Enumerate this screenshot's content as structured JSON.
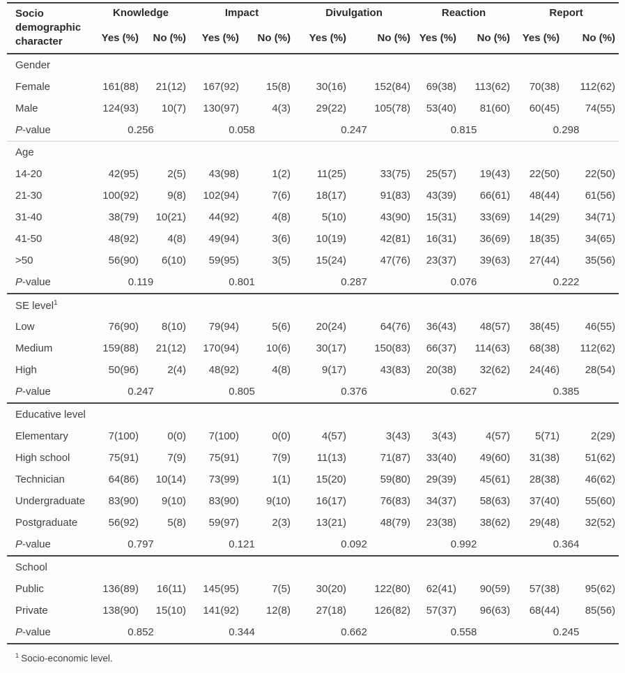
{
  "table": {
    "stub_header": "Socio demographic character",
    "groups": [
      "Knowledge",
      "Impact",
      "Divulgation",
      "Reaction",
      "Report"
    ],
    "subheaders": {
      "yes": "Yes (%)",
      "no": "No (%)"
    },
    "p_row": {
      "italic": "P",
      "rest": "-value"
    },
    "sections": [
      {
        "name": "Gender",
        "sup": "",
        "rows": [
          {
            "label": "Female",
            "values": [
              "161(88)",
              "21(12)",
              "167(92)",
              "15(8)",
              "30(16)",
              "152(84)",
              "69(38)",
              "113(62)",
              "70(38)",
              "112(62)"
            ]
          },
          {
            "label": "Male",
            "values": [
              "124(93)",
              "10(7)",
              "130(97)",
              "4(3)",
              "29(22)",
              "105(78)",
              "53(40)",
              "81(60)",
              "60(45)",
              "74(55)"
            ]
          }
        ],
        "p_values": [
          "0.256",
          "0.058",
          "0.247",
          "0.815",
          "0.298"
        ]
      },
      {
        "name": "Age",
        "sup": "",
        "rows": [
          {
            "label": "14-20",
            "values": [
              "42(95)",
              "2(5)",
              "43(98)",
              "1(2)",
              "11(25)",
              "33(75)",
              "25(57)",
              "19(43)",
              "22(50)",
              "22(50)"
            ]
          },
          {
            "label": "21-30",
            "values": [
              "100(92)",
              "9(8)",
              "102(94)",
              "7(6)",
              "18(17)",
              "91(83)",
              "43(39)",
              "66(61)",
              "48(44)",
              "61(56)"
            ]
          },
          {
            "label": "31-40",
            "values": [
              "38(79)",
              "10(21)",
              "44(92)",
              "4(8)",
              "5(10)",
              "43(90)",
              "15(31)",
              "33(69)",
              "14(29)",
              "34(71)"
            ]
          },
          {
            "label": "41-50",
            "values": [
              "48(92)",
              "4(8)",
              "49(94)",
              "3(6)",
              "10(19)",
              "42(81)",
              "16(31)",
              "36(69)",
              "18(35)",
              "34(65)"
            ]
          },
          {
            "label": ">50",
            "values": [
              "56(90)",
              "6(10)",
              "59(95)",
              "3(5)",
              "15(24)",
              "47(76)",
              "23(37)",
              "39(63)",
              "27(44)",
              "35(56)"
            ]
          }
        ],
        "p_values": [
          "0.119",
          "0.801",
          "0.287",
          "0.076",
          "0.222"
        ]
      },
      {
        "name": "SE level",
        "sup": "1",
        "rows": [
          {
            "label": "Low",
            "values": [
              "76(90)",
              "8(10)",
              "79(94)",
              "5(6)",
              "20(24)",
              "64(76)",
              "36(43)",
              "48(57)",
              "38(45)",
              "46(55)"
            ]
          },
          {
            "label": "Medium",
            "values": [
              "159(88)",
              "21(12)",
              "170(94)",
              "10(6)",
              "30(17)",
              "150(83)",
              "66(37)",
              "114(63)",
              "68(38)",
              "112(62)"
            ]
          },
          {
            "label": "High",
            "values": [
              "50(96)",
              "2(4)",
              "48(92)",
              "4(8)",
              "9(17)",
              "43(83)",
              "20(38)",
              "32(62)",
              "24(46)",
              "28(54)"
            ]
          }
        ],
        "p_values": [
          "0.247",
          "0.805",
          "0.376",
          "0.627",
          "0.385"
        ]
      },
      {
        "name": "Educative level",
        "sup": "",
        "rows": [
          {
            "label": "Elementary",
            "values": [
              "7(100)",
              "0(0)",
              "7(100)",
              "0(0)",
              "4(57)",
              "3(43)",
              "3(43)",
              "4(57)",
              "5(71)",
              "2(29)"
            ]
          },
          {
            "label": "High school",
            "values": [
              "75(91)",
              "7(9)",
              "75(91)",
              "7(9)",
              "11(13)",
              "71(87)",
              "33(40)",
              "49(60)",
              "31(38)",
              "51(62)"
            ]
          },
          {
            "label": "Technician",
            "values": [
              "64(86)",
              "10(14)",
              "73(99)",
              "1(1)",
              "15(20)",
              "59(80)",
              "29(39)",
              "45(61)",
              "28(38)",
              "46(62)"
            ]
          },
          {
            "label": "Undergraduate",
            "values": [
              "83(90)",
              "9(10)",
              "83(90)",
              "9(10)",
              "16(17)",
              "76(83)",
              "34(37)",
              "58(63)",
              "37(40)",
              "55(60)"
            ]
          },
          {
            "label": "Postgraduate",
            "values": [
              "56(92)",
              "5(8)",
              "59(97)",
              "2(3)",
              "13(21)",
              "48(79)",
              "23(38)",
              "38(62)",
              "29(48)",
              "32(52)"
            ]
          }
        ],
        "p_values": [
          "0.797",
          "0.121",
          "0.092",
          "0.992",
          "0.364"
        ]
      },
      {
        "name": "School",
        "sup": "",
        "rows": [
          {
            "label": "Public",
            "values": [
              "136(89)",
              "16(11)",
              "145(95)",
              "7(5)",
              "30(20)",
              "122(80)",
              "62(41)",
              "90(59)",
              "57(38)",
              "95(62)"
            ]
          },
          {
            "label": "Private",
            "values": [
              "138(90)",
              "15(10)",
              "141(92)",
              "12(8)",
              "27(18)",
              "126(82)",
              "57(37)",
              "96(63)",
              "68(44)",
              "85(56)"
            ]
          }
        ],
        "p_values": [
          "0.852",
          "0.344",
          "0.662",
          "0.558",
          "0.245"
        ]
      }
    ],
    "footnote": {
      "sup": "1",
      "text": "Socio-economic level."
    }
  }
}
